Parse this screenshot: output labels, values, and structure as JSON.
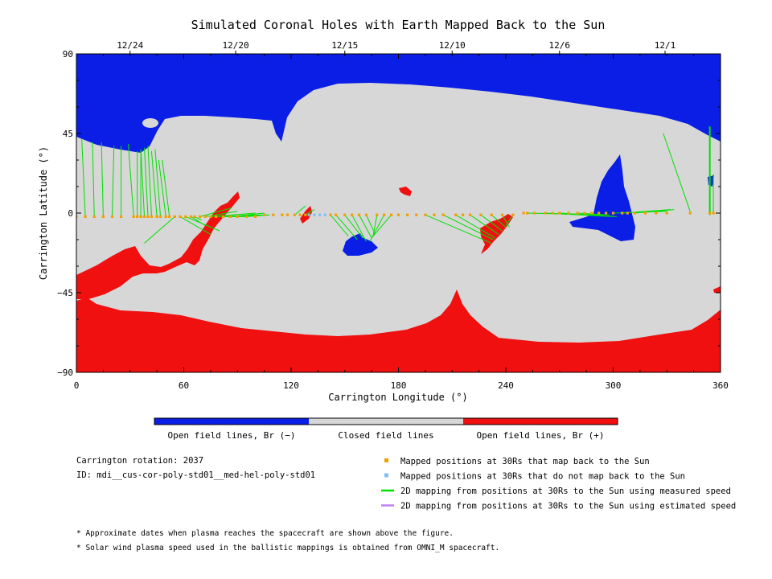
{
  "chart_data": {
    "type": "map",
    "title": "Simulated Coronal Holes with Earth Mapped Back to the Sun",
    "xlabel": "Carrington Longitude (°)",
    "ylabel": "Carrington Latitude (°)",
    "xlim": [
      0,
      360
    ],
    "ylim": [
      -90,
      90
    ],
    "x_ticks": [
      "0",
      "60",
      "120",
      "180",
      "240",
      "300",
      "360"
    ],
    "y_ticks": [
      "90",
      "45",
      "0",
      "-45",
      "-90"
    ],
    "date_ticks": [
      {
        "label": "12/24",
        "lon": 30
      },
      {
        "label": "12/20",
        "lon": 89
      },
      {
        "label": "12/15",
        "lon": 150
      },
      {
        "label": "12/10",
        "lon": 210
      },
      {
        "label": "12/6",
        "lon": 270
      },
      {
        "label": "12/1",
        "lon": 329
      }
    ],
    "colorbar": [
      {
        "label": "Open field lines, Br (−)",
        "color": "#0a1ee6"
      },
      {
        "label": "Closed field lines",
        "color": "#d7d7d7"
      },
      {
        "label": "Open field lines, Br (+)",
        "color": "#f01010"
      }
    ],
    "legend": [
      {
        "label": "Mapped positions at 30Rs that map back to the Sun",
        "marker": "square",
        "color": "#f0a000"
      },
      {
        "label": "Mapped positions at 30Rs that do not map back to the Sun",
        "marker": "square",
        "color": "#80c0f0"
      },
      {
        "label": "2D mapping from positions at 30Rs to the Sun using measured speed",
        "marker": "line",
        "color": "#00e000"
      },
      {
        "label": "2D mapping from positions at 30Rs to the Sun using estimated speed",
        "marker": "line",
        "color": "#c080f0"
      }
    ],
    "info": {
      "rotation": "Carrington rotation: 2037",
      "id": "ID: mdi__cus-cor-poly-std01__med-hel-poly-std01"
    },
    "notes": [
      "* Approximate dates when plasma reaches the spacecraft are shown above the figure.",
      "* Solar wind plasma speed used in the ballistic mappings is obtained from OMNI_M spacecraft."
    ],
    "mapping_lines": [
      [
        0,
        -2,
        0,
        40
      ],
      [
        5,
        -2,
        3,
        42
      ],
      [
        10,
        -2,
        9,
        40
      ],
      [
        15,
        -2,
        14,
        40
      ],
      [
        20,
        -2,
        21,
        38
      ],
      [
        25,
        -2,
        25,
        38
      ],
      [
        32,
        -2,
        29,
        39
      ],
      [
        34,
        -2,
        34,
        35
      ],
      [
        36,
        -2,
        36,
        36
      ],
      [
        38,
        -2,
        36,
        36
      ],
      [
        40,
        -2,
        38,
        37
      ],
      [
        42,
        -2,
        40,
        38
      ],
      [
        45,
        -2,
        42,
        35
      ],
      [
        47,
        -2,
        44,
        36
      ],
      [
        50,
        -2,
        46,
        30
      ],
      [
        52,
        -2,
        48,
        30
      ],
      [
        55,
        -2,
        38,
        -17
      ],
      [
        58,
        -2,
        75,
        -12
      ],
      [
        61,
        -2,
        80,
        -10
      ],
      [
        64,
        -2,
        72,
        -7
      ],
      [
        66,
        -2,
        70,
        -4
      ],
      [
        69,
        -2,
        87,
        3
      ],
      [
        72,
        -2,
        90,
        1
      ],
      [
        75,
        -2,
        100,
        0
      ],
      [
        78,
        -2,
        103,
        -1
      ],
      [
        82,
        -2,
        96,
        -2
      ],
      [
        86,
        -2,
        105,
        0
      ],
      [
        90,
        -2,
        107,
        -1
      ],
      [
        95,
        -2,
        108,
        -1
      ],
      [
        122,
        -1,
        128,
        4
      ],
      [
        128,
        -1,
        133,
        2
      ],
      [
        142,
        -1,
        152,
        -13
      ],
      [
        145,
        -1,
        157,
        -15
      ],
      [
        150,
        -1,
        160,
        -14
      ],
      [
        154,
        -1,
        162,
        -16
      ],
      [
        158,
        -1,
        165,
        -14
      ],
      [
        162,
        -1,
        167,
        -12
      ],
      [
        168,
        -1,
        166,
        -12
      ],
      [
        172,
        -1,
        164,
        -16
      ],
      [
        176,
        -1,
        165,
        -14
      ],
      [
        195,
        -1,
        232,
        -17
      ],
      [
        205,
        -1,
        233,
        -15
      ],
      [
        212,
        -1,
        234,
        -14
      ],
      [
        220,
        -1,
        236,
        -12
      ],
      [
        226,
        -1,
        238,
        -10
      ],
      [
        232,
        -1,
        240,
        -8
      ],
      [
        238,
        -1,
        242,
        -8
      ],
      [
        244,
        -1,
        240,
        -7
      ],
      [
        252,
        0,
        295,
        -1
      ],
      [
        262,
        0,
        300,
        -2
      ],
      [
        270,
        0,
        302,
        -2
      ],
      [
        280,
        0,
        298,
        -1
      ],
      [
        300,
        0,
        330,
        1
      ],
      [
        305,
        0,
        332,
        2
      ],
      [
        312,
        0,
        334,
        2
      ],
      [
        328,
        45,
        343,
        1
      ],
      [
        354,
        49,
        354,
        0
      ],
      [
        356,
        22,
        356,
        0
      ]
    ],
    "mapped_points_blue": [
      [
        130,
        -1
      ],
      [
        133,
        -1
      ],
      [
        136,
        -1
      ],
      [
        139,
        -1
      ]
    ],
    "mapped_points_orange": [
      [
        0,
        -2
      ],
      [
        5,
        -2
      ],
      [
        10,
        -2
      ],
      [
        15,
        -2
      ],
      [
        20,
        -2
      ],
      [
        25,
        -2
      ],
      [
        32,
        -2
      ],
      [
        34,
        -2
      ],
      [
        36,
        -2
      ],
      [
        38,
        -2
      ],
      [
        40,
        -2
      ],
      [
        42,
        -2
      ],
      [
        45,
        -2
      ],
      [
        47,
        -2
      ],
      [
        50,
        -2
      ],
      [
        52,
        -2
      ],
      [
        55,
        -2
      ],
      [
        58,
        -2
      ],
      [
        61,
        -2
      ],
      [
        64,
        -2
      ],
      [
        66,
        -2
      ],
      [
        69,
        -2
      ],
      [
        72,
        -2
      ],
      [
        75,
        -2
      ],
      [
        78,
        -2
      ],
      [
        82,
        -2
      ],
      [
        86,
        -2
      ],
      [
        90,
        -2
      ],
      [
        95,
        -2
      ],
      [
        100,
        -2
      ],
      [
        105,
        -1
      ],
      [
        110,
        -1
      ],
      [
        115,
        -1
      ],
      [
        118,
        -1
      ],
      [
        122,
        -1
      ],
      [
        125,
        -1
      ],
      [
        128,
        -1
      ],
      [
        142,
        -1
      ],
      [
        145,
        -1
      ],
      [
        150,
        -1
      ],
      [
        154,
        -1
      ],
      [
        158,
        -1
      ],
      [
        162,
        -1
      ],
      [
        168,
        -1
      ],
      [
        172,
        -1
      ],
      [
        176,
        -1
      ],
      [
        180,
        -1
      ],
      [
        185,
        -1
      ],
      [
        190,
        -1
      ],
      [
        195,
        -1
      ],
      [
        200,
        -1
      ],
      [
        205,
        -1
      ],
      [
        212,
        -1
      ],
      [
        216,
        -1
      ],
      [
        220,
        -1
      ],
      [
        226,
        -1
      ],
      [
        232,
        -1
      ],
      [
        238,
        -1
      ],
      [
        244,
        -1
      ],
      [
        250,
        0
      ],
      [
        252,
        0
      ],
      [
        256,
        0
      ],
      [
        262,
        0
      ],
      [
        266,
        0
      ],
      [
        270,
        0
      ],
      [
        275,
        0
      ],
      [
        280,
        0
      ],
      [
        284,
        0
      ],
      [
        288,
        0
      ],
      [
        292,
        0
      ],
      [
        296,
        0
      ],
      [
        300,
        0
      ],
      [
        305,
        0
      ],
      [
        308,
        0
      ],
      [
        312,
        0
      ],
      [
        318,
        0
      ],
      [
        324,
        0
      ],
      [
        330,
        0
      ],
      [
        343,
        0
      ],
      [
        354,
        0
      ],
      [
        356,
        0
      ]
    ]
  }
}
